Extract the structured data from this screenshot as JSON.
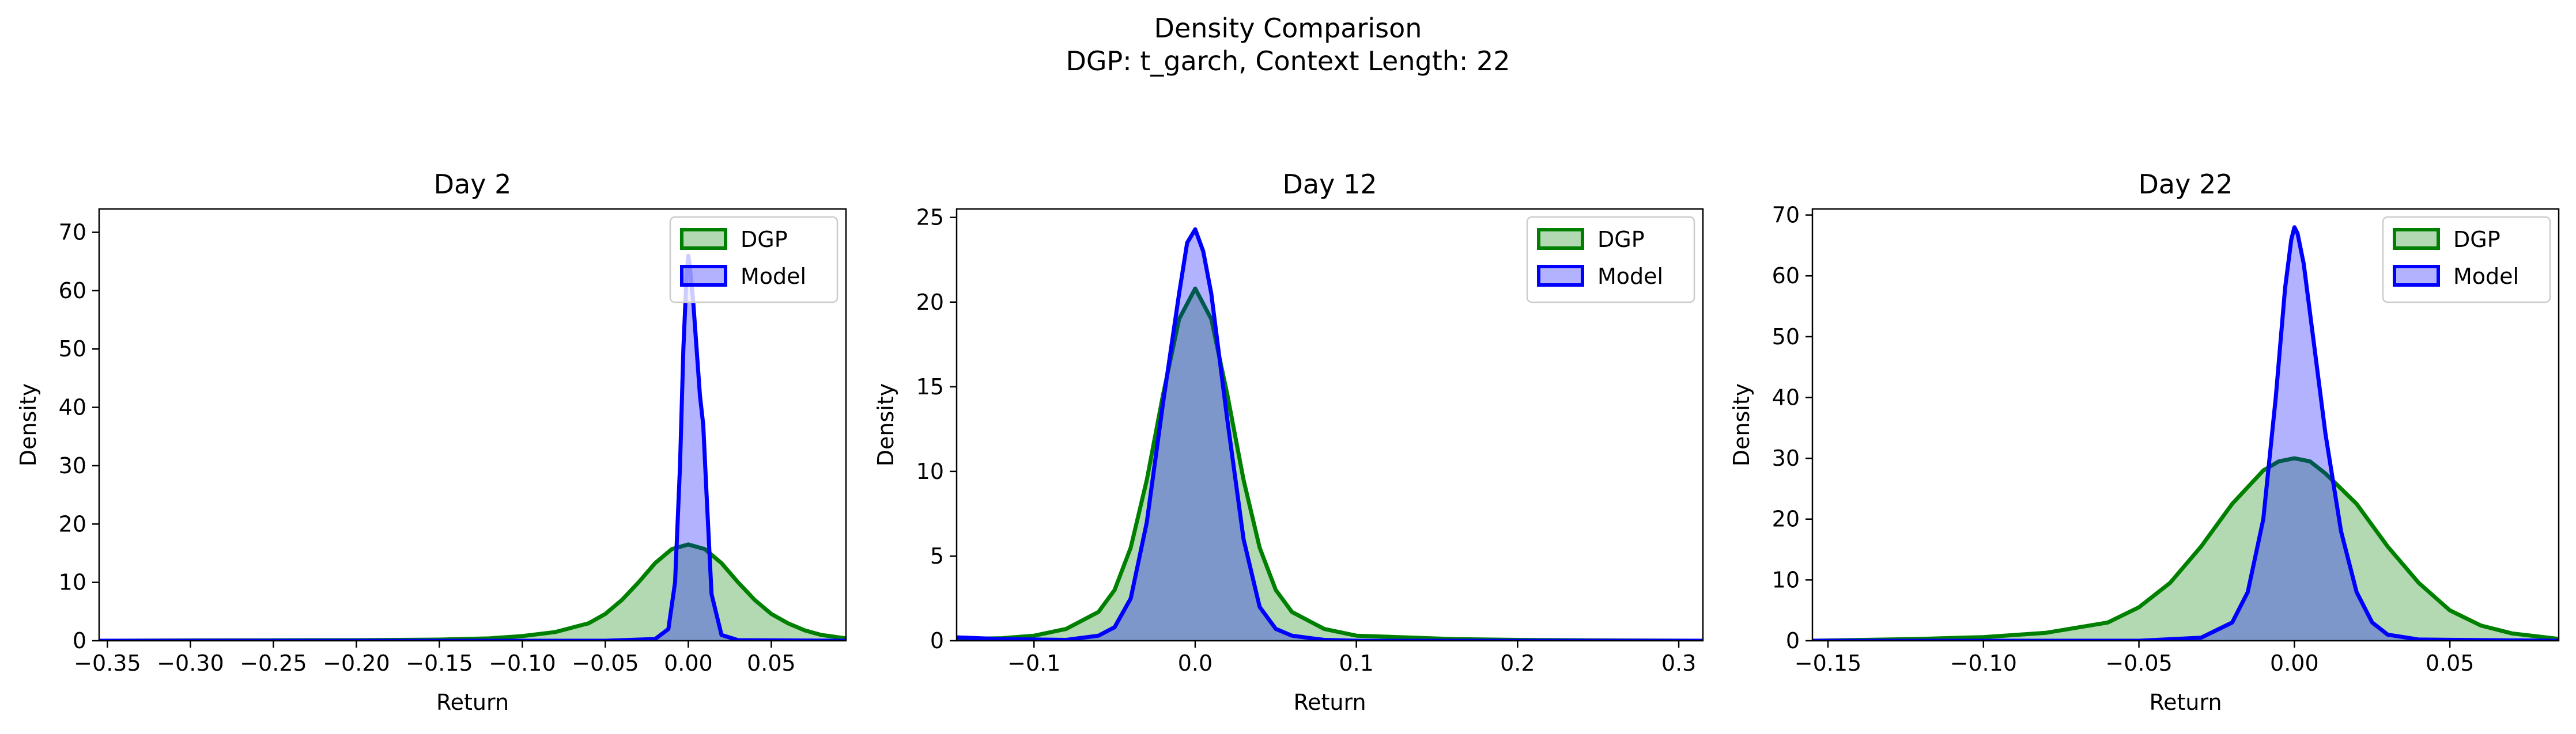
{
  "figure": {
    "title_line1": "Density Comparison",
    "title_line2": "DGP: t_garch, Context Length: 22"
  },
  "colors": {
    "dgp_line": "#008000",
    "dgp_fill": "#b3d9b3",
    "model_line": "#0000ff",
    "model_fill": "#b3b3ff",
    "overlap_fill": "#7799cc"
  },
  "chart_data": [
    {
      "type": "area",
      "title": "Day 2",
      "xlabel": "Return",
      "ylabel": "Density",
      "xlim": [
        -0.355,
        0.095
      ],
      "ylim": [
        0,
        74
      ],
      "xticks": [
        -0.35,
        -0.3,
        -0.25,
        -0.2,
        -0.15,
        -0.1,
        -0.05,
        0.0,
        0.05
      ],
      "xtick_labels": [
        "−0.35",
        "−0.30",
        "−0.25",
        "−0.20",
        "−0.15",
        "−0.10",
        "−0.05",
        "0.00",
        "0.05"
      ],
      "yticks": [
        0,
        10,
        20,
        30,
        40,
        50,
        60,
        70
      ],
      "ytick_labels": [
        "0",
        "10",
        "20",
        "30",
        "40",
        "50",
        "60",
        "70"
      ],
      "grid": false,
      "legend": "top-right",
      "series": [
        {
          "name": "DGP",
          "x": [
            -0.355,
            -0.3,
            -0.25,
            -0.2,
            -0.15,
            -0.12,
            -0.1,
            -0.08,
            -0.06,
            -0.05,
            -0.04,
            -0.03,
            -0.02,
            -0.01,
            0.0,
            0.01,
            0.02,
            0.03,
            0.04,
            0.05,
            0.06,
            0.07,
            0.08,
            0.095
          ],
          "y": [
            0,
            0.05,
            0.08,
            0.1,
            0.2,
            0.4,
            0.8,
            1.5,
            3.0,
            4.6,
            7.0,
            10.0,
            13.3,
            15.7,
            16.5,
            15.7,
            13.3,
            10.0,
            7.0,
            4.6,
            3.0,
            1.8,
            1.0,
            0.4
          ]
        },
        {
          "name": "Model",
          "x": [
            -0.355,
            -0.05,
            -0.02,
            -0.012,
            -0.008,
            -0.005,
            -0.003,
            -0.001,
            0.0,
            0.001,
            0.003,
            0.005,
            0.007,
            0.009,
            0.011,
            0.014,
            0.02,
            0.03,
            0.095
          ],
          "y": [
            0,
            0,
            0.3,
            2.0,
            10.0,
            30.0,
            50.0,
            63.0,
            66.0,
            64.0,
            58.0,
            50.0,
            42.0,
            37.0,
            25.0,
            8.0,
            1.0,
            0.1,
            0
          ]
        }
      ]
    },
    {
      "type": "area",
      "title": "Day 12",
      "xlabel": "Return",
      "ylabel": "Density",
      "xlim": [
        -0.148,
        0.315
      ],
      "ylim": [
        0,
        25.5
      ],
      "xticks": [
        -0.1,
        0.0,
        0.1,
        0.2,
        0.3
      ],
      "xtick_labels": [
        "−0.1",
        "0.0",
        "0.1",
        "0.2",
        "0.3"
      ],
      "yticks": [
        0,
        5,
        10,
        15,
        20,
        25
      ],
      "ytick_labels": [
        "0",
        "5",
        "10",
        "15",
        "20",
        "25"
      ],
      "grid": false,
      "legend": "top-right",
      "series": [
        {
          "name": "DGP",
          "x": [
            -0.148,
            -0.12,
            -0.1,
            -0.08,
            -0.06,
            -0.05,
            -0.04,
            -0.03,
            -0.02,
            -0.01,
            0.0,
            0.01,
            0.02,
            0.03,
            0.04,
            0.05,
            0.06,
            0.08,
            0.1,
            0.13,
            0.16,
            0.2,
            0.25,
            0.315
          ],
          "y": [
            0.1,
            0.15,
            0.3,
            0.7,
            1.7,
            3.0,
            5.5,
            9.5,
            14.5,
            19.0,
            20.8,
            19.0,
            14.5,
            9.5,
            5.5,
            3.0,
            1.7,
            0.7,
            0.3,
            0.2,
            0.1,
            0.05,
            0.02,
            0
          ]
        },
        {
          "name": "Model",
          "x": [
            -0.148,
            -0.12,
            -0.08,
            -0.06,
            -0.05,
            -0.04,
            -0.03,
            -0.02,
            -0.01,
            -0.005,
            0.0,
            0.005,
            0.01,
            0.02,
            0.03,
            0.04,
            0.05,
            0.06,
            0.08,
            0.1,
            0.315
          ],
          "y": [
            0.2,
            0.1,
            0.05,
            0.3,
            0.8,
            2.5,
            7.0,
            14.0,
            20.5,
            23.5,
            24.3,
            23.0,
            20.5,
            13.0,
            6.0,
            2.0,
            0.7,
            0.3,
            0.05,
            0,
            0
          ]
        }
      ]
    },
    {
      "type": "area",
      "title": "Day 22",
      "xlabel": "Return",
      "ylabel": "Density",
      "xlim": [
        -0.155,
        0.085
      ],
      "ylim": [
        0,
        71
      ],
      "xticks": [
        -0.15,
        -0.1,
        -0.05,
        0.0,
        0.05
      ],
      "xtick_labels": [
        "−0.15",
        "−0.10",
        "−0.05",
        "0.00",
        "0.05"
      ],
      "yticks": [
        0,
        10,
        20,
        30,
        40,
        50,
        60,
        70
      ],
      "ytick_labels": [
        "0",
        "10",
        "20",
        "30",
        "40",
        "50",
        "60",
        "70"
      ],
      "grid": false,
      "legend": "top-right",
      "series": [
        {
          "name": "DGP",
          "x": [
            -0.155,
            -0.12,
            -0.1,
            -0.08,
            -0.06,
            -0.05,
            -0.04,
            -0.03,
            -0.02,
            -0.01,
            -0.005,
            0.0,
            0.005,
            0.01,
            0.02,
            0.03,
            0.04,
            0.05,
            0.06,
            0.07,
            0.085
          ],
          "y": [
            0,
            0.3,
            0.6,
            1.3,
            3.0,
            5.5,
            9.5,
            15.5,
            22.5,
            28.0,
            29.5,
            30.0,
            29.5,
            27.5,
            22.5,
            15.5,
            9.5,
            5.0,
            2.5,
            1.2,
            0.3
          ]
        },
        {
          "name": "Model",
          "x": [
            -0.155,
            -0.05,
            -0.03,
            -0.02,
            -0.015,
            -0.01,
            -0.006,
            -0.003,
            -0.001,
            0.0,
            0.001,
            0.003,
            0.006,
            0.01,
            0.015,
            0.02,
            0.025,
            0.03,
            0.04,
            0.085
          ],
          "y": [
            0,
            0,
            0.5,
            3.0,
            8.0,
            20.0,
            40.0,
            58.0,
            66.0,
            68.0,
            67.0,
            62.0,
            50.0,
            34.0,
            18.0,
            8.0,
            3.0,
            1.0,
            0.2,
            0
          ]
        }
      ]
    }
  ]
}
